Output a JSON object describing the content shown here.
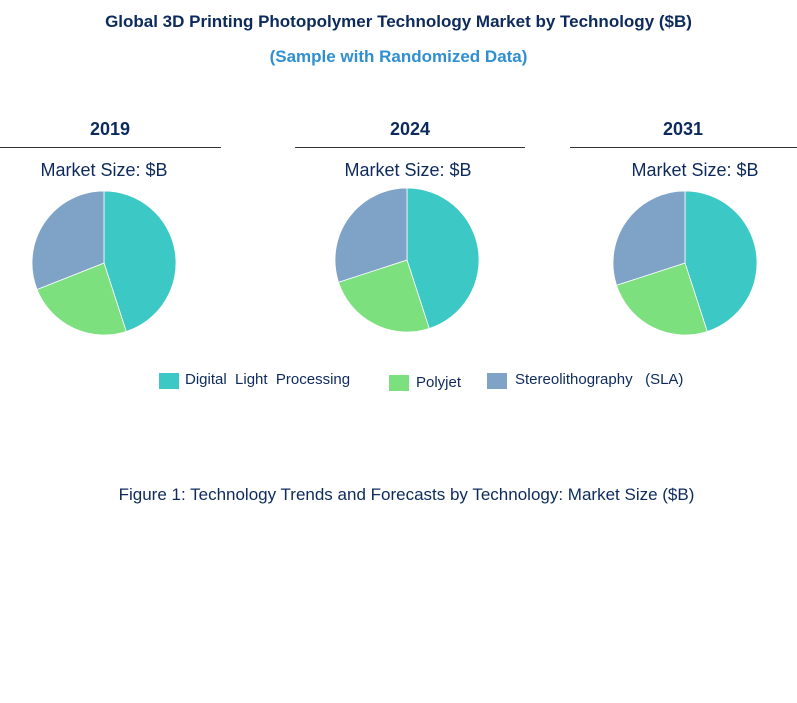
{
  "title": "Global 3D Printing Photopolymer Technology Market by Technology ($B)",
  "subtitle": "(Sample with Randomized Data)",
  "caption": "Figure 1: Technology Trends and Forecasts by Technology: Market Size ($B)",
  "colors": {
    "Digital Light Processing": "#3cc8c4",
    "Polyjet": "#7de07f",
    "Stereolithography (SLA)": "#7fa3c7"
  },
  "legend": [
    {
      "label": "Digital  Light  Processing",
      "color": "#3cc8c4"
    },
    {
      "label": "Polyjet",
      "color": "#7de07f"
    },
    {
      "label": "Stereolithography   (SLA)",
      "color": "#7fa3c7"
    }
  ],
  "chart_data": [
    {
      "type": "pie",
      "title": "2019",
      "subtitle": "Market Size: $B",
      "categories": [
        "Digital Light Processing",
        "Polyjet",
        "Stereolithography (SLA)"
      ],
      "values": [
        45,
        24,
        31
      ]
    },
    {
      "type": "pie",
      "title": "2024",
      "subtitle": "Market Size: $B",
      "categories": [
        "Digital Light Processing",
        "Polyjet",
        "Stereolithography (SLA)"
      ],
      "values": [
        45,
        25,
        30
      ]
    },
    {
      "type": "pie",
      "title": "2031",
      "subtitle": "Market Size: $B",
      "categories": [
        "Digital Light Processing",
        "Polyjet",
        "Stereolithography (SLA)"
      ],
      "values": [
        45,
        25,
        30
      ]
    }
  ]
}
